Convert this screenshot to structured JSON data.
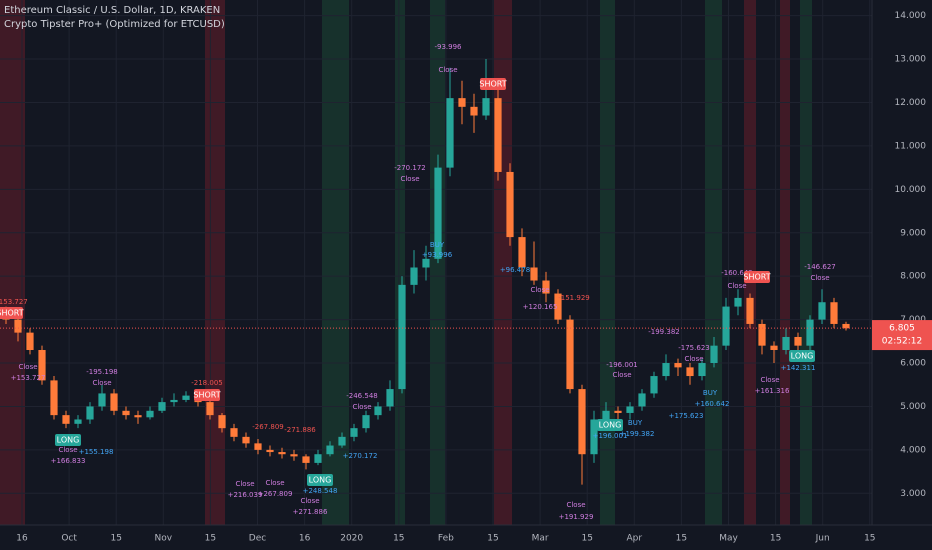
{
  "chart_data": {
    "type": "candlestick",
    "title": "Ethereum Classic / U.S. Dollar, 1D, KRAKEN",
    "subtitle": "Crypto Tipster Pro+ (Optimized for ETCUSD)",
    "up_color": "#26a69a",
    "down_color": "#ff7b3a",
    "open": [
      7.1,
      7.0,
      6.7,
      6.3,
      5.6,
      4.8,
      4.6,
      4.7,
      5.0,
      5.3,
      4.9,
      4.8,
      4.75,
      4.9,
      5.1,
      5.15,
      5.25,
      5.1,
      4.8,
      4.5,
      4.3,
      4.15,
      4.0,
      3.95,
      3.9,
      3.85,
      3.7,
      3.9,
      4.1,
      4.3,
      4.5,
      4.8,
      5.0,
      5.4,
      7.8,
      8.2,
      8.4,
      10.5,
      12.1,
      11.9,
      11.7,
      12.1,
      10.4,
      8.9,
      8.2,
      7.9,
      7.6,
      7.0,
      5.4,
      3.9,
      4.7,
      4.9,
      4.85,
      5.0,
      5.3,
      5.7,
      6.0,
      5.9,
      5.7,
      6.0,
      6.4,
      7.3,
      7.5,
      6.9,
      6.4,
      6.3,
      6.6,
      6.4,
      7.0,
      7.4,
      6.9
    ],
    "high": [
      7.3,
      7.1,
      6.8,
      6.4,
      5.7,
      4.9,
      4.8,
      5.1,
      5.5,
      5.4,
      5.0,
      4.9,
      5.0,
      5.2,
      5.3,
      5.35,
      5.3,
      5.15,
      4.85,
      4.6,
      4.4,
      4.25,
      4.1,
      4.05,
      4.0,
      3.9,
      4.0,
      4.2,
      4.4,
      4.6,
      4.9,
      5.1,
      5.6,
      8.0,
      8.6,
      8.7,
      10.8,
      12.8,
      12.5,
      12.2,
      13.0,
      12.3,
      10.6,
      9.1,
      8.8,
      8.1,
      7.7,
      7.1,
      5.5,
      4.9,
      5.1,
      5.0,
      5.1,
      5.4,
      5.8,
      6.2,
      6.1,
      6.0,
      6.1,
      6.6,
      7.5,
      7.7,
      7.6,
      7.0,
      6.5,
      6.8,
      6.7,
      7.1,
      7.7,
      7.5,
      6.95
    ],
    "low": [
      6.9,
      6.5,
      6.2,
      5.5,
      4.7,
      4.5,
      4.5,
      4.6,
      4.9,
      4.8,
      4.7,
      4.6,
      4.7,
      4.85,
      5.0,
      5.1,
      5.0,
      4.7,
      4.4,
      4.2,
      4.05,
      3.9,
      3.85,
      3.8,
      3.75,
      3.55,
      3.65,
      3.85,
      4.05,
      4.2,
      4.4,
      4.7,
      4.9,
      5.3,
      7.6,
      7.9,
      8.3,
      10.3,
      11.5,
      11.3,
      11.6,
      10.2,
      8.7,
      8.0,
      7.8,
      7.4,
      6.9,
      5.3,
      3.2,
      3.7,
      4.5,
      4.6,
      4.7,
      4.9,
      5.2,
      5.6,
      5.7,
      5.5,
      5.6,
      5.9,
      6.3,
      7.1,
      6.8,
      6.2,
      6.0,
      6.2,
      6.2,
      6.3,
      6.9,
      6.8,
      6.75
    ],
    "close": [
      7.0,
      6.7,
      6.3,
      5.6,
      4.8,
      4.6,
      4.7,
      5.0,
      5.3,
      4.9,
      4.8,
      4.75,
      4.9,
      5.1,
      5.15,
      5.25,
      5.1,
      4.8,
      4.5,
      4.3,
      4.15,
      4.0,
      3.95,
      3.9,
      3.85,
      3.7,
      3.9,
      4.1,
      4.3,
      4.5,
      4.8,
      5.0,
      5.4,
      7.8,
      8.2,
      8.4,
      10.5,
      12.1,
      11.9,
      11.7,
      12.1,
      10.4,
      8.9,
      8.2,
      7.9,
      7.6,
      7.0,
      5.4,
      3.9,
      4.7,
      4.9,
      4.85,
      5.0,
      5.3,
      5.7,
      6.0,
      5.9,
      5.7,
      6.0,
      6.4,
      7.3,
      7.5,
      6.9,
      6.4,
      6.3,
      6.6,
      6.4,
      7.0,
      7.4,
      6.9,
      6.8
    ],
    "categories": [
      "16",
      "Oct",
      "15",
      "Nov",
      "15",
      "Dec",
      "16",
      "2020",
      "15",
      "Feb",
      "15",
      "Mar",
      "15",
      "Apr",
      "15",
      "May",
      "15",
      "Jun",
      "15"
    ],
    "ylim": [
      2.27,
      14.36
    ],
    "yticks": [
      {
        "value": 3,
        "label": "3.000"
      },
      {
        "value": 4,
        "label": "4.000"
      },
      {
        "value": 5,
        "label": "5.000"
      },
      {
        "value": 6,
        "label": "6.000"
      },
      {
        "value": 7,
        "label": "7.000"
      },
      {
        "value": 8,
        "label": "8.000"
      },
      {
        "value": 9,
        "label": "9.000"
      },
      {
        "value": 10,
        "label": "10.000"
      },
      {
        "value": 11,
        "label": "11.000"
      },
      {
        "value": 12,
        "label": "12.000"
      },
      {
        "value": 13,
        "label": "13.000"
      },
      {
        "value": 14,
        "label": "14.000"
      }
    ],
    "last_price": 6.805,
    "countdown": "02:52:12",
    "grid": true,
    "annotations": [
      "SHORT",
      "-153.727",
      "Close",
      "+153.727",
      "LONG",
      "Close",
      "+166.833",
      "-195.198",
      "Close",
      "+155.198",
      "-218.005",
      "SHORT",
      "Close",
      "+216.039",
      "-267.809",
      "Close",
      "+267.809",
      "-271.886",
      "LONG",
      "+248.548",
      "Close",
      "+271.886",
      "-246.548",
      "Close",
      "+270.172",
      "-270.172",
      "Close",
      "BUY",
      "+93.996",
      "-93.996",
      "Close",
      "SHORT",
      "+96.478",
      "Close",
      "+120.165",
      "-151.929",
      "Close",
      "+191.929",
      "-196.001",
      "Close",
      "LONG",
      "+196.001",
      "BUY",
      "+199.382",
      "-199.382",
      "-175.623",
      "Close",
      "+175.623",
      "BUY",
      "+160.642",
      "-160.642",
      "Close",
      "SHORT",
      "Close",
      "+161.316",
      "LONG",
      "+142.311",
      "-146.627",
      "Close"
    ]
  }
}
